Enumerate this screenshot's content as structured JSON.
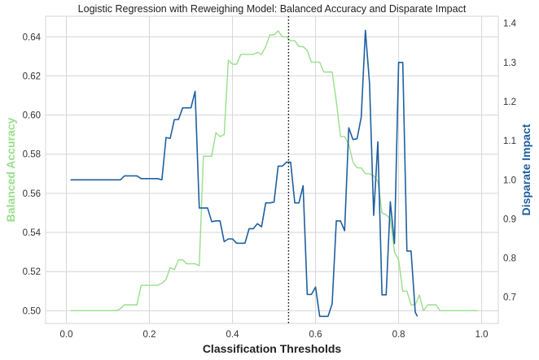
{
  "chart_data": {
    "type": "line",
    "title": "Logistic Regression with Reweighing Model: Balanced Accuracy and Disparate Impact",
    "xlabel": "Classification Thresholds",
    "xlim": [
      -0.05,
      1.04
    ],
    "xticks": [
      "0.0",
      "0.2",
      "0.4",
      "0.6",
      "0.8",
      "1.0"
    ],
    "y_left": {
      "label": "Balanced Accuracy",
      "color": "#98df8a",
      "ylim": [
        0.4935,
        0.6505
      ],
      "ticks": [
        "0.50",
        "0.52",
        "0.54",
        "0.56",
        "0.58",
        "0.60",
        "0.62",
        "0.64"
      ]
    },
    "y_right": {
      "label": "Disparate Impact",
      "color": "#1f5fa0",
      "ylim": [
        0.633,
        1.418
      ],
      "ticks": [
        "0.7",
        "0.8",
        "0.9",
        "1.0",
        "1.1",
        "1.2",
        "1.3",
        "1.4"
      ]
    },
    "vline": {
      "x": 0.535,
      "style": "dotted",
      "color": "#000000"
    },
    "grid": true,
    "series": [
      {
        "axis": "left",
        "color": "#98df8a",
        "x": [
          0.01,
          0.02,
          0.03,
          0.04,
          0.05,
          0.06,
          0.07,
          0.08,
          0.09,
          0.1,
          0.11,
          0.12,
          0.13,
          0.14,
          0.15,
          0.16,
          0.17,
          0.18,
          0.19,
          0.2,
          0.21,
          0.22,
          0.23,
          0.24,
          0.25,
          0.26,
          0.27,
          0.28,
          0.29,
          0.3,
          0.31,
          0.32,
          0.33,
          0.34,
          0.35,
          0.36,
          0.37,
          0.38,
          0.39,
          0.4,
          0.41,
          0.42,
          0.43,
          0.44,
          0.45,
          0.46,
          0.47,
          0.48,
          0.49,
          0.5,
          0.51,
          0.52,
          0.53,
          0.54,
          0.55,
          0.56,
          0.57,
          0.58,
          0.59,
          0.6,
          0.61,
          0.62,
          0.63,
          0.64,
          0.65,
          0.66,
          0.67,
          0.68,
          0.69,
          0.7,
          0.71,
          0.72,
          0.73,
          0.74,
          0.75,
          0.76,
          0.77,
          0.78,
          0.79,
          0.8,
          0.81,
          0.82,
          0.83,
          0.84,
          0.85,
          0.86,
          0.87,
          0.88,
          0.89,
          0.9,
          0.91,
          0.92,
          0.93,
          0.94,
          0.95,
          0.96,
          0.97,
          0.98,
          0.99
        ],
        "values": [
          0.5,
          0.5,
          0.5,
          0.5,
          0.5,
          0.5,
          0.5,
          0.5,
          0.5,
          0.5,
          0.5,
          0.5,
          0.501,
          0.503,
          0.503,
          0.503,
          0.503,
          0.513,
          0.513,
          0.513,
          0.513,
          0.513,
          0.514,
          0.516,
          0.522,
          0.521,
          0.526,
          0.526,
          0.524,
          0.524,
          0.524,
          0.523,
          0.579,
          0.579,
          0.579,
          0.591,
          0.589,
          0.59,
          0.628,
          0.626,
          0.626,
          0.631,
          0.631,
          0.631,
          0.631,
          0.632,
          0.631,
          0.635,
          0.641,
          0.641,
          0.643,
          0.64,
          0.64,
          0.638,
          0.638,
          0.635,
          0.635,
          0.633,
          0.627,
          0.627,
          0.627,
          0.622,
          0.622,
          0.622,
          0.607,
          0.589,
          0.589,
          0.585,
          0.576,
          0.573,
          0.573,
          0.57,
          0.57,
          0.569,
          0.566,
          0.55,
          0.549,
          0.547,
          0.53,
          0.526,
          0.51,
          0.51,
          0.503,
          0.503,
          0.508,
          0.5,
          0.503,
          0.503,
          0.503,
          0.5,
          0.5,
          0.5,
          0.5,
          0.5,
          0.5,
          0.5,
          0.5,
          0.5,
          0.5
        ]
      },
      {
        "axis": "right",
        "color": "#1f5fa0",
        "x": [
          0.01,
          0.02,
          0.03,
          0.04,
          0.05,
          0.06,
          0.07,
          0.08,
          0.09,
          0.1,
          0.11,
          0.12,
          0.13,
          0.14,
          0.15,
          0.16,
          0.17,
          0.18,
          0.19,
          0.2,
          0.21,
          0.22,
          0.23,
          0.24,
          0.25,
          0.26,
          0.27,
          0.28,
          0.29,
          0.3,
          0.31,
          0.32,
          0.33,
          0.34,
          0.35,
          0.36,
          0.37,
          0.38,
          0.39,
          0.4,
          0.41,
          0.42,
          0.43,
          0.44,
          0.45,
          0.46,
          0.47,
          0.48,
          0.49,
          0.5,
          0.51,
          0.52,
          0.53,
          0.54,
          0.55,
          0.56,
          0.57,
          0.58,
          0.59,
          0.6,
          0.61,
          0.62,
          0.63,
          0.64,
          0.65,
          0.66,
          0.67,
          0.68,
          0.69,
          0.7,
          0.71,
          0.72,
          0.73,
          0.74,
          0.75,
          0.76,
          0.77,
          0.78,
          0.79,
          0.8,
          0.81,
          0.82,
          0.83,
          0.84,
          0.845
        ],
        "values": [
          1.0,
          1.0,
          1.0,
          1.0,
          1.0,
          1.0,
          1.0,
          1.0,
          1.0,
          1.0,
          1.0,
          1.0,
          1.0,
          1.01,
          1.01,
          1.01,
          1.01,
          1.003,
          1.003,
          1.003,
          1.003,
          1.003,
          1.0,
          1.108,
          1.106,
          1.154,
          1.154,
          1.184,
          1.184,
          1.184,
          1.226,
          0.928,
          0.928,
          0.928,
          0.893,
          0.895,
          0.895,
          0.842,
          0.849,
          0.849,
          0.838,
          0.838,
          0.838,
          0.875,
          0.875,
          0.888,
          0.88,
          0.941,
          0.941,
          0.943,
          1.035,
          1.035,
          1.045,
          1.045,
          0.941,
          0.941,
          0.985,
          0.707,
          0.707,
          0.726,
          0.651,
          0.651,
          0.651,
          0.683,
          0.895,
          0.895,
          0.87,
          1.133,
          1.103,
          1.105,
          1.16,
          1.382,
          1.246,
          0.909,
          1.097,
          0.706,
          0.706,
          0.944,
          0.837,
          1.3,
          1.3,
          0.818,
          0.818,
          0.662,
          0.651
        ]
      }
    ]
  }
}
